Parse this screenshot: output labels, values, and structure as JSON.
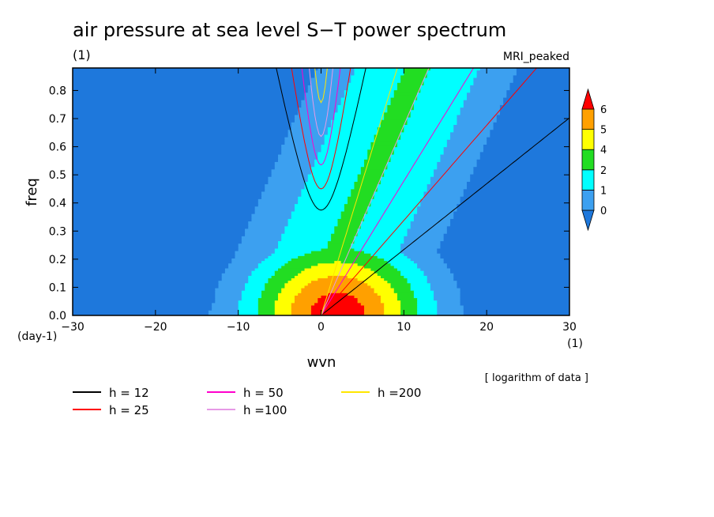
{
  "chart_data": {
    "type": "heatmap",
    "title": "air pressure at sea level S−T power spectrum",
    "subtitle": "(1)",
    "model_label": "MRI_peaked",
    "xlabel": "wvn",
    "ylabel": "freq",
    "x_unit": "(1)",
    "y_unit": "(day-1)",
    "note": "[ logarithm of data ]",
    "xlim": [
      -30,
      30
    ],
    "ylim": [
      0,
      0.88
    ],
    "x_ticks": [
      -30,
      -20,
      -10,
      0,
      10,
      20,
      30
    ],
    "x_tick_labels": [
      "−30",
      "−20",
      "−10",
      "0",
      "10",
      "20",
      "30"
    ],
    "y_ticks": [
      0.0,
      0.1,
      0.2,
      0.3,
      0.4,
      0.5,
      0.6,
      0.7,
      0.8
    ],
    "y_tick_labels": [
      "0.0",
      "0.1",
      "0.2",
      "0.3",
      "0.4",
      "0.5",
      "0.6",
      "0.7",
      "0.8"
    ],
    "colorbar": {
      "labels": [
        "0",
        "1",
        "2",
        "4",
        "5",
        "6"
      ],
      "colors": [
        "#1e78dc",
        "#3ca0f0",
        "#00ffff",
        "#22dd22",
        "#ffff00",
        "#ffa000",
        "#ff0000"
      ]
    },
    "shading_levels": [
      {
        "level": 0,
        "color": "#1e78dc"
      },
      {
        "level": 1,
        "color": "#3ca0f0"
      },
      {
        "level": 2,
        "color": "#00ffff"
      },
      {
        "level": 3,
        "color": "#22dd22"
      },
      {
        "level": 4,
        "color": "#ffff00"
      },
      {
        "level": 5,
        "color": "#ffa000"
      },
      {
        "level": 6,
        "color": "#ff0000"
      }
    ],
    "dispersion_curves": [
      {
        "label": "h = 12",
        "h": 12,
        "color": "#000000"
      },
      {
        "label": "h = 25",
        "h": 25,
        "color": "#ff0000"
      },
      {
        "label": "h = 50",
        "h": 50,
        "color": "#ff00cc"
      },
      {
        "label": "h =100",
        "h": 100,
        "color": "#e699e6"
      },
      {
        "label": "h =200",
        "h": 200,
        "color": "#ffe600"
      }
    ]
  }
}
